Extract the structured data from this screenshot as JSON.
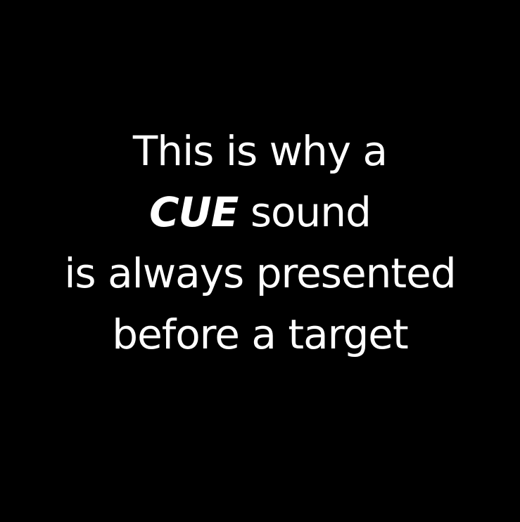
{
  "slide": {
    "lines": {
      "line1": "This is why a",
      "cue_word": "CUE",
      "line2_rest": " sound",
      "line3": "is always presented",
      "line4": "before a target"
    }
  },
  "colors": {
    "background": "#000000",
    "text": "#ffffff"
  }
}
